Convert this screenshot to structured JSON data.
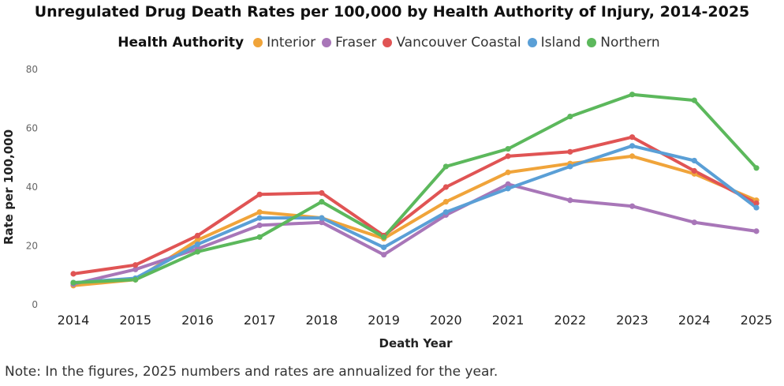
{
  "note": "Note: In the figures, 2025 numbers and rates are annualized for the year.",
  "chart_data": {
    "type": "line",
    "title": "Unregulated Drug Death Rates per 100,000 by Health Authority of Injury, 2014-2025",
    "xlabel": "Death Year",
    "ylabel": "Rate per 100,000",
    "legend_title": "Health Authority",
    "legend_position": "top-center",
    "grid": false,
    "ylim": [
      0,
      80
    ],
    "yticks": [
      0,
      20,
      40,
      60,
      80
    ],
    "x": [
      "2014",
      "2015",
      "2016",
      "2017",
      "2018",
      "2019",
      "2020",
      "2021",
      "2022",
      "2023",
      "2024",
      "2025"
    ],
    "series": [
      {
        "name": "Interior",
        "color": "#F0A43A",
        "values": [
          6.5,
          8.5,
          22.0,
          31.5,
          29.5,
          22.5,
          35.0,
          45.0,
          48.0,
          50.5,
          44.5,
          35.5
        ]
      },
      {
        "name": "Fraser",
        "color": "#A876B8",
        "values": [
          7.0,
          12.0,
          19.0,
          27.0,
          28.0,
          17.0,
          30.5,
          41.0,
          35.5,
          33.5,
          28.0,
          25.0
        ]
      },
      {
        "name": "Vancouver Coastal",
        "color": "#E05454",
        "values": [
          10.5,
          13.5,
          23.5,
          37.5,
          38.0,
          23.5,
          40.0,
          50.5,
          52.0,
          57.0,
          45.5,
          34.5
        ]
      },
      {
        "name": "Island",
        "color": "#5A9FD6",
        "values": [
          7.5,
          9.0,
          20.5,
          29.5,
          29.5,
          19.5,
          31.5,
          39.5,
          47.0,
          54.0,
          49.0,
          33.0
        ]
      },
      {
        "name": "Northern",
        "color": "#5CB85C",
        "values": [
          7.5,
          8.5,
          18.0,
          23.0,
          35.0,
          23.0,
          47.0,
          53.0,
          64.0,
          71.5,
          69.5,
          46.5
        ]
      }
    ]
  }
}
